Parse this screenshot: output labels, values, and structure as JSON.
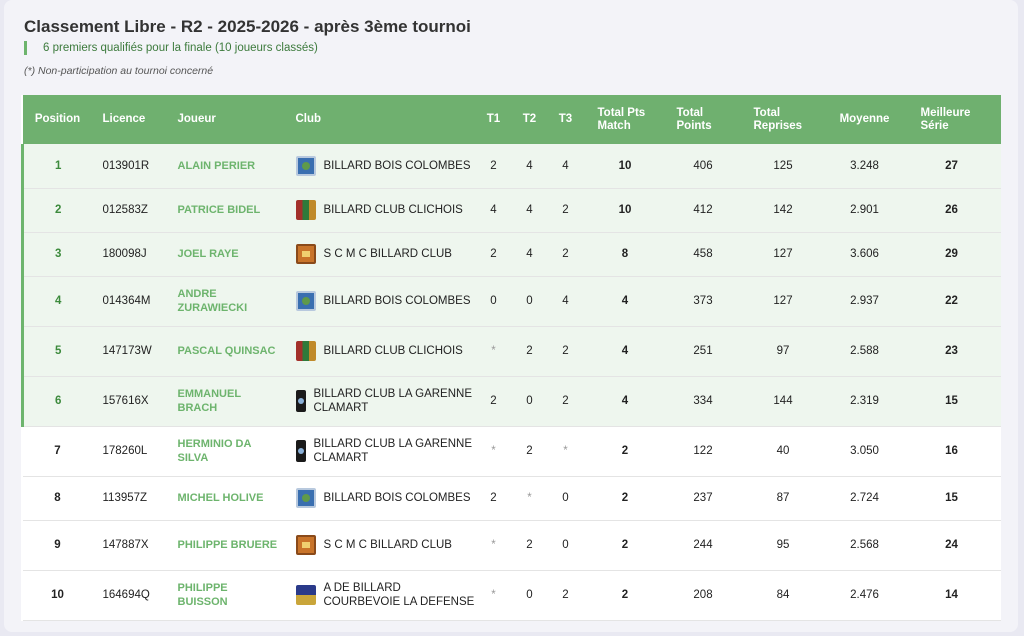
{
  "page": {
    "title": "Classement Libre - R2 - 2025-2026 - après 3ème tournoi",
    "subtitle": "6 premiers qualifiés pour la finale (10 joueurs classés)",
    "note": "(*) Non-participation au tournoi concerné"
  },
  "table": {
    "headers": {
      "position": "Position",
      "licence": "Licence",
      "joueur": "Joueur",
      "club": "Club",
      "t1": "T1",
      "t2": "T2",
      "t3": "T3",
      "total_pts_match": "Total Pts Match",
      "total_points": "Total Points",
      "total_reprises": "Total Reprises",
      "moyenne": "Moyenne",
      "meilleure_serie": "Meilleure Série"
    },
    "rows": [
      {
        "position": "1",
        "licence": "013901R",
        "joueur": "ALAIN PERIER",
        "club": "BILLARD BOIS COLOMBES",
        "logo": "bbc-logo-icon",
        "t1": "2",
        "t2": "4",
        "t3": "4",
        "pts_match": "10",
        "points": "406",
        "reprises": "125",
        "moyenne": "3.248",
        "serie": "27",
        "qualified": true
      },
      {
        "position": "2",
        "licence": "012583Z",
        "joueur": "PATRICE BIDEL",
        "club": "BILLARD CLUB CLICHOIS",
        "logo": "bcc-logo-icon",
        "t1": "4",
        "t2": "4",
        "t3": "2",
        "pts_match": "10",
        "points": "412",
        "reprises": "142",
        "moyenne": "2.901",
        "serie": "26",
        "qualified": true
      },
      {
        "position": "3",
        "licence": "180098J",
        "joueur": "JOEL RAYE",
        "club": "S C M C BILLARD CLUB",
        "logo": "scmc-logo-icon",
        "t1": "2",
        "t2": "4",
        "t3": "2",
        "pts_match": "8",
        "points": "458",
        "reprises": "127",
        "moyenne": "3.606",
        "serie": "29",
        "qualified": true
      },
      {
        "position": "4",
        "licence": "014364M",
        "joueur": "ANDRE ZURAWIECKI",
        "club": "BILLARD BOIS COLOMBES",
        "logo": "bbc-logo-icon",
        "t1": "0",
        "t2": "0",
        "t3": "4",
        "pts_match": "4",
        "points": "373",
        "reprises": "127",
        "moyenne": "2.937",
        "serie": "22",
        "qualified": true
      },
      {
        "position": "5",
        "licence": "147173W",
        "joueur": "PASCAL QUINSAC",
        "club": "BILLARD CLUB CLICHOIS",
        "logo": "bcc-logo-icon",
        "t1": "*",
        "t2": "2",
        "t3": "2",
        "pts_match": "4",
        "points": "251",
        "reprises": "97",
        "moyenne": "2.588",
        "serie": "23",
        "qualified": true
      },
      {
        "position": "6",
        "licence": "157616X",
        "joueur": "EMMANUEL BRACH",
        "club": "BILLARD CLUB LA GARENNE CLAMART",
        "logo": "bclg-logo-icon",
        "t1": "2",
        "t2": "0",
        "t3": "2",
        "pts_match": "4",
        "points": "334",
        "reprises": "144",
        "moyenne": "2.319",
        "serie": "15",
        "qualified": true
      },
      {
        "position": "7",
        "licence": "178260L",
        "joueur": "HERMINIO DA SILVA",
        "club": "BILLARD CLUB LA GARENNE CLAMART",
        "logo": "bclg-logo-icon",
        "t1": "*",
        "t2": "2",
        "t3": "*",
        "pts_match": "2",
        "points": "122",
        "reprises": "40",
        "moyenne": "3.050",
        "serie": "16",
        "qualified": false
      },
      {
        "position": "8",
        "licence": "113957Z",
        "joueur": "MICHEL HOLIVE",
        "club": "BILLARD BOIS COLOMBES",
        "logo": "bbc-logo-icon",
        "t1": "2",
        "t2": "*",
        "t3": "0",
        "pts_match": "2",
        "points": "237",
        "reprises": "87",
        "moyenne": "2.724",
        "serie": "15",
        "qualified": false
      },
      {
        "position": "9",
        "licence": "147887X",
        "joueur": "PHILIPPE BRUERE",
        "club": "S C M C BILLARD CLUB",
        "logo": "scmc-logo-icon",
        "t1": "*",
        "t2": "2",
        "t3": "0",
        "pts_match": "2",
        "points": "244",
        "reprises": "95",
        "moyenne": "2.568",
        "serie": "24",
        "qualified": false
      },
      {
        "position": "10",
        "licence": "164694Q",
        "joueur": "PHILIPPE BUISSON",
        "club": "A DE BILLARD COURBEVOIE LA DEFENSE",
        "logo": "adb-logo-icon",
        "t1": "*",
        "t2": "0",
        "t3": "2",
        "pts_match": "2",
        "points": "208",
        "reprises": "84",
        "moyenne": "2.476",
        "serie": "14",
        "qualified": false
      }
    ]
  },
  "colors": {
    "header_bg": "#6fb06f",
    "qualified_bg": "#eef6ee",
    "accent": "#6db46d",
    "player_name": "#6db46d"
  }
}
